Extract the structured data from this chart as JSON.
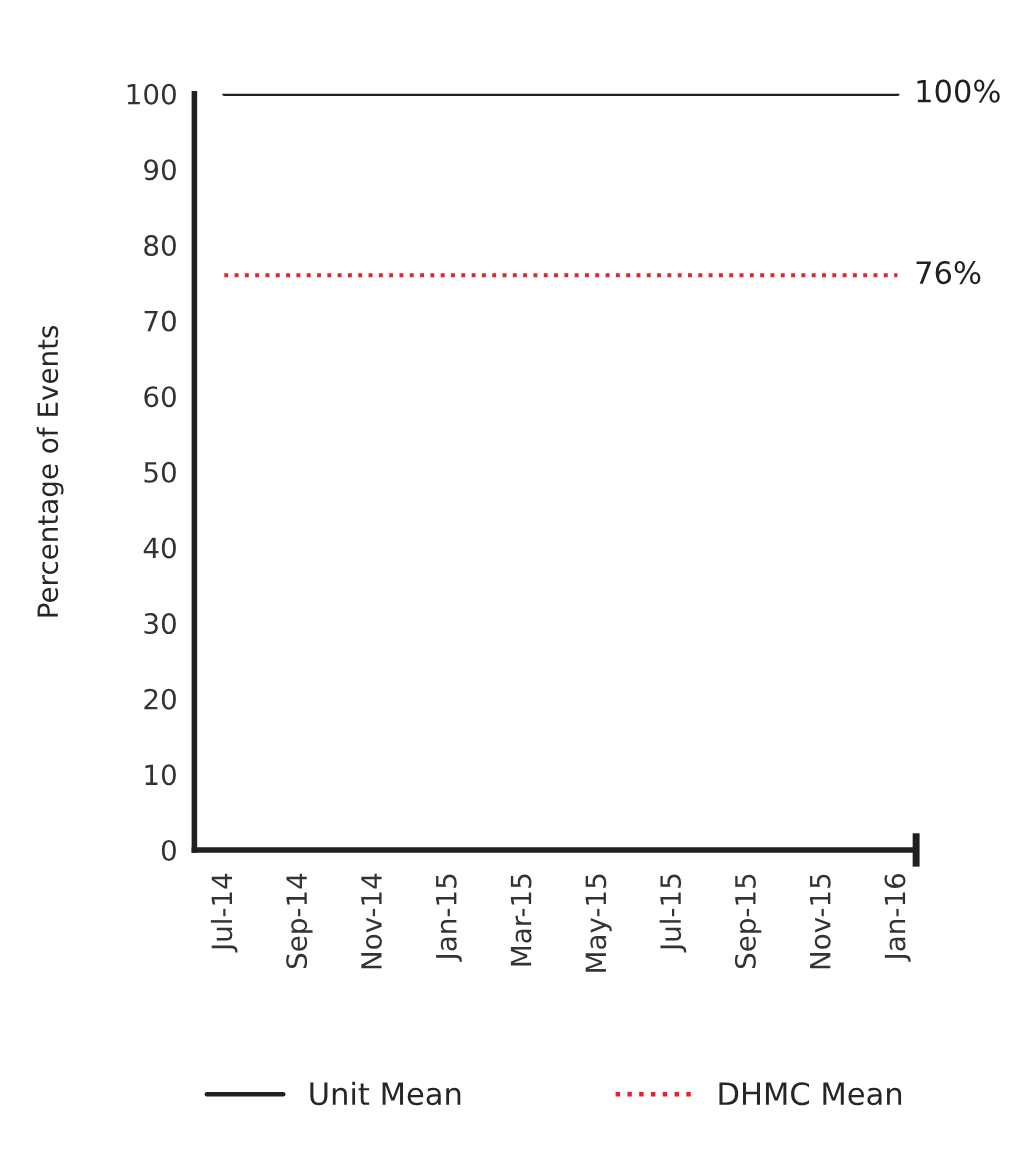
{
  "chart_data": {
    "type": "line",
    "ylabel": "Percentage of Events",
    "categories": [
      "Jul-14",
      "Sep-14",
      "Nov-14",
      "Jan-15",
      "Mar-15",
      "May-15",
      "Jul-15",
      "Sep-15",
      "Nov-15",
      "Jan-16"
    ],
    "series": [
      {
        "name": "Unit Mean",
        "color": "#231f20",
        "line_style": "solid",
        "values": [
          100,
          100,
          100,
          100,
          100,
          100,
          100,
          100,
          100,
          100
        ],
        "value_labels": [
          null,
          null,
          null,
          null,
          null,
          null,
          null,
          null,
          null,
          "100%"
        ]
      },
      {
        "name": "DHMC Mean",
        "color": "#e8202a",
        "line_style": "dotted",
        "values": [
          76,
          76,
          76,
          76,
          76,
          76,
          76,
          76,
          76,
          76
        ],
        "value_labels": [
          null,
          null,
          null,
          null,
          null,
          null,
          null,
          null,
          null,
          "76%"
        ]
      }
    ],
    "ylim": [
      0,
      100
    ],
    "yticks": [
      0,
      10,
      20,
      30,
      40,
      50,
      60,
      70,
      80,
      90,
      100
    ],
    "grid": false,
    "legend": "bottom",
    "marker": "none"
  }
}
